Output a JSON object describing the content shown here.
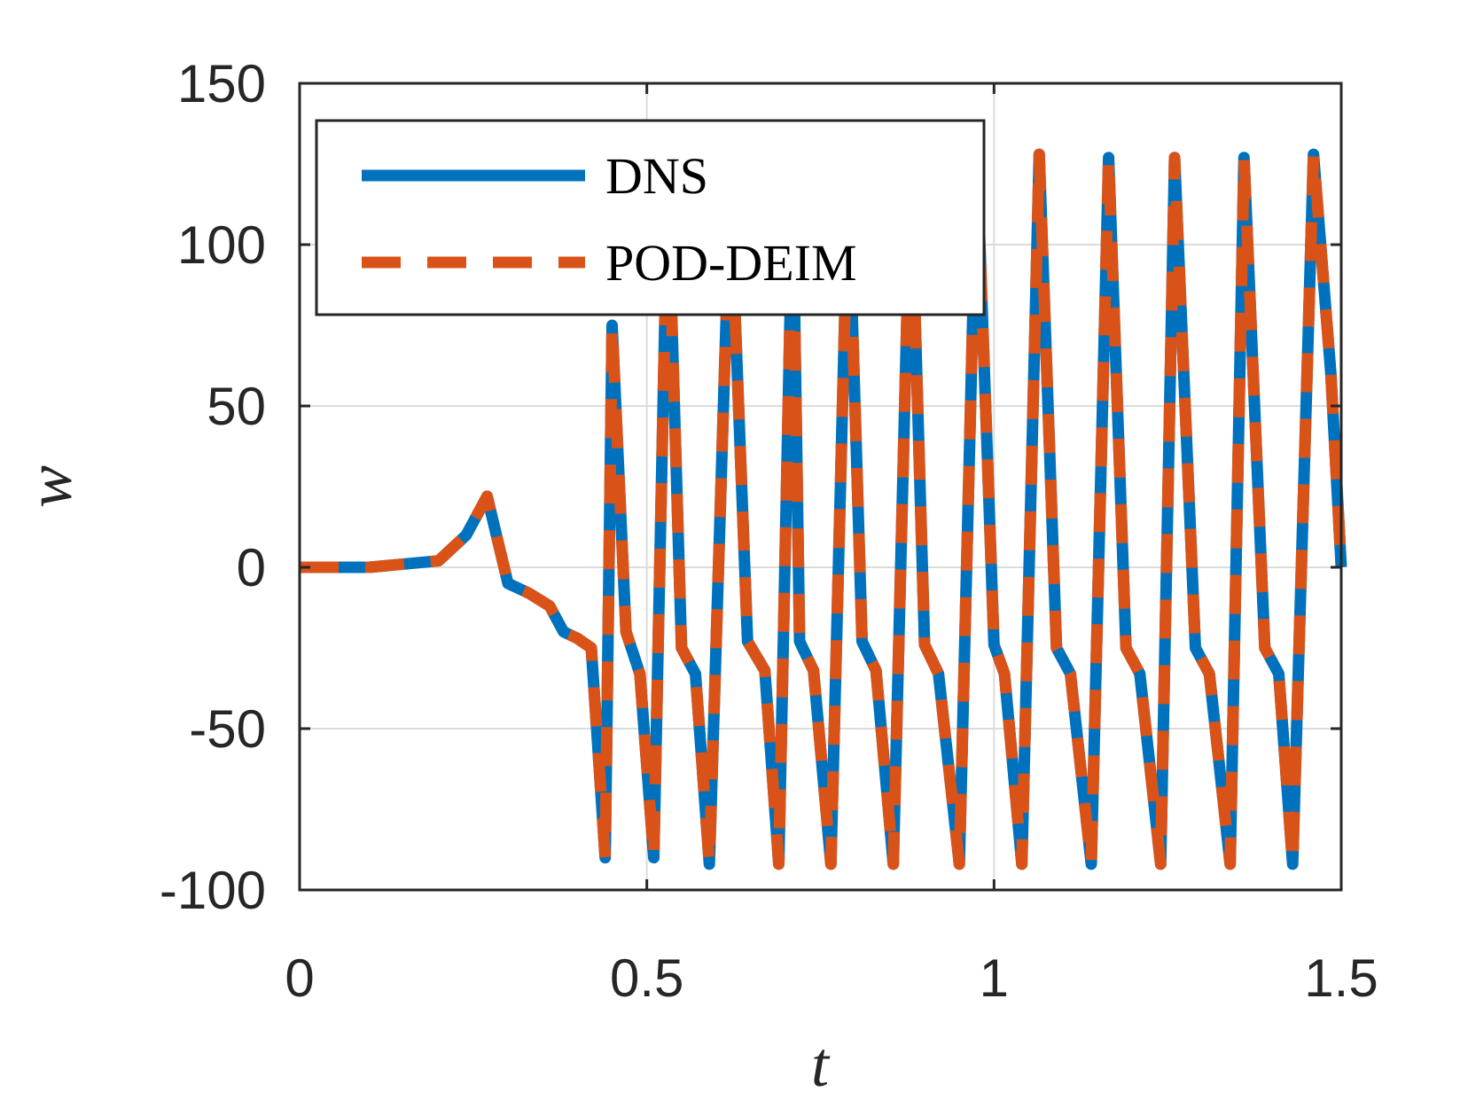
{
  "chart_data": {
    "type": "line",
    "title": "",
    "xlabel": "t",
    "ylabel": "w",
    "xlim": [
      0,
      1.5
    ],
    "ylim": [
      -100,
      150
    ],
    "xticks": [
      0,
      0.5,
      1,
      1.5
    ],
    "xtick_labels": [
      "0",
      "0.5",
      "1",
      "1.5"
    ],
    "yticks": [
      -100,
      -50,
      0,
      50,
      100,
      150
    ],
    "ytick_labels": [
      "-100",
      "-50",
      "0",
      "50",
      "100",
      "150"
    ],
    "grid": true,
    "legend_position": "top-left",
    "series": [
      {
        "name": "DNS",
        "color": "#0072BD",
        "style": "solid",
        "x": [
          0,
          0.1,
          0.2,
          0.24,
          0.27,
          0.3,
          0.33,
          0.36,
          0.38,
          0.4,
          0.42,
          0.44,
          0.45,
          0.47,
          0.49,
          0.51,
          0.53,
          0.55,
          0.57,
          0.59,
          0.62,
          0.645,
          0.67,
          0.69,
          0.71,
          0.72,
          0.74,
          0.765,
          0.79,
          0.81,
          0.83,
          0.855,
          0.88,
          0.9,
          0.92,
          0.95,
          0.975,
          1.0,
          1.015,
          1.04,
          1.065,
          1.09,
          1.11,
          1.14,
          1.165,
          1.19,
          1.21,
          1.24,
          1.26,
          1.29,
          1.31,
          1.34,
          1.36,
          1.39,
          1.41,
          1.43,
          1.46,
          1.485,
          1.5
        ],
        "y": [
          0,
          0,
          2,
          10,
          22,
          -5,
          -8,
          -12,
          -20,
          -22,
          -25,
          -90,
          75,
          -20,
          -33,
          -90,
          120,
          -25,
          -33,
          -92,
          118,
          -23,
          -32,
          -92,
          118,
          -23,
          -32,
          -92,
          120,
          -23,
          -32,
          -92,
          125,
          -24,
          -33,
          -92,
          128,
          -24,
          -33,
          -92,
          128,
          -25,
          -33,
          -92,
          127,
          -25,
          -33,
          -92,
          127,
          -25,
          -33,
          -92,
          127,
          -25,
          -33,
          -92,
          128,
          60,
          0
        ]
      },
      {
        "name": "POD-DEIM",
        "color": "#D95319",
        "style": "dashed",
        "x": [
          0,
          0.1,
          0.2,
          0.24,
          0.27,
          0.3,
          0.33,
          0.36,
          0.38,
          0.4,
          0.42,
          0.44,
          0.45,
          0.47,
          0.49,
          0.51,
          0.53,
          0.55,
          0.57,
          0.59,
          0.62,
          0.645,
          0.67,
          0.69,
          0.71,
          0.72,
          0.74,
          0.765,
          0.79,
          0.81,
          0.83,
          0.855,
          0.88,
          0.9,
          0.92,
          0.95,
          0.975,
          1.0,
          1.015,
          1.04,
          1.065,
          1.09,
          1.11,
          1.14,
          1.165,
          1.19,
          1.21,
          1.24,
          1.26,
          1.29,
          1.31,
          1.34,
          1.36,
          1.39,
          1.41,
          1.43,
          1.46,
          1.485,
          1.5
        ],
        "y": [
          0,
          0,
          2,
          10,
          22,
          -5,
          -8,
          -12,
          -20,
          -22,
          -25,
          -90,
          75,
          -20,
          -33,
          -90,
          120,
          -25,
          -33,
          -92,
          118,
          -23,
          -32,
          -92,
          118,
          -23,
          -32,
          -92,
          120,
          -23,
          -32,
          -92,
          125,
          -24,
          -33,
          -92,
          128,
          -24,
          -33,
          -92,
          128,
          -25,
          -33,
          -92,
          127,
          -25,
          -33,
          -92,
          127,
          -25,
          -33,
          -92,
          127,
          -25,
          -33,
          -92,
          128,
          60,
          0
        ]
      }
    ]
  }
}
